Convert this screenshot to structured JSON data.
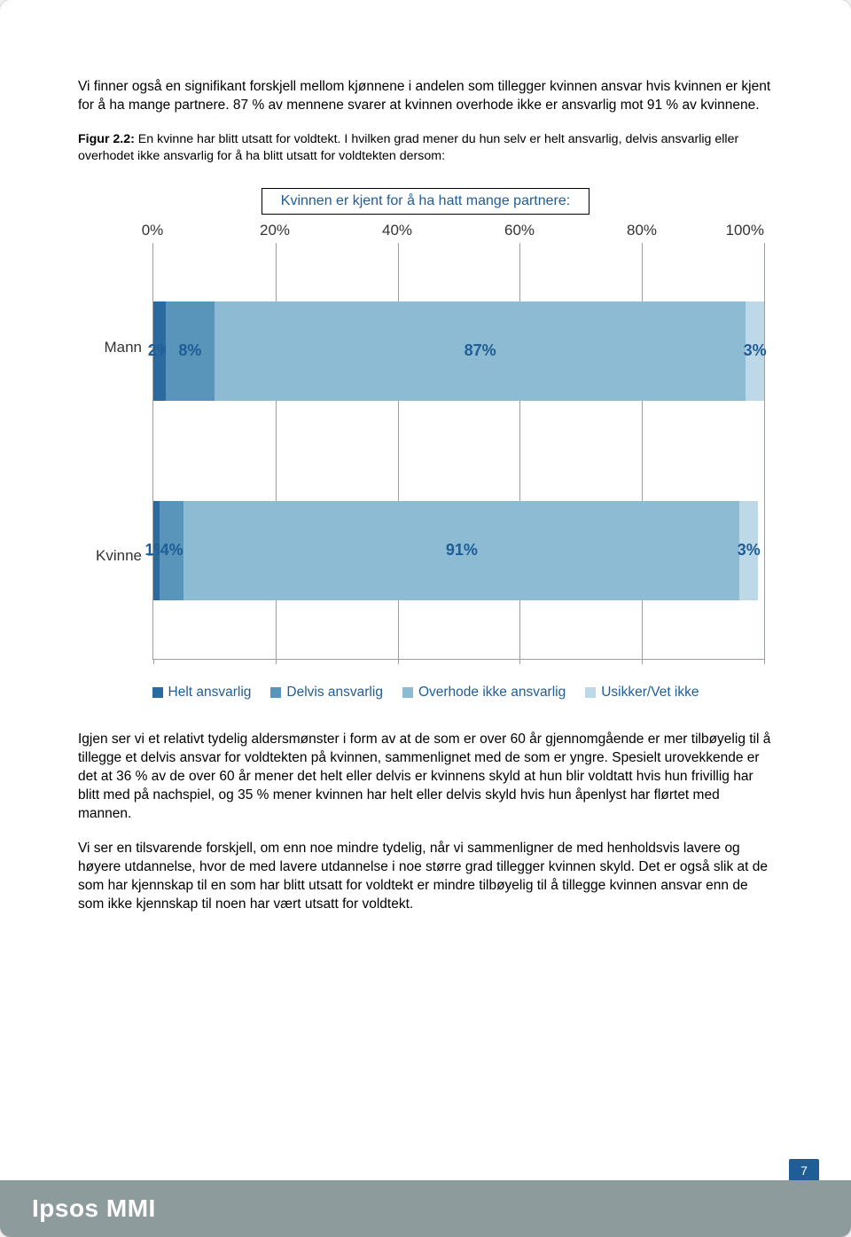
{
  "paragraphs": {
    "intro": "Vi finner også en signifikant forskjell mellom kjønnene i andelen som tillegger kvinnen ansvar hvis kvinnen er kjent for å ha mange partnere. 87 % av mennene svarer at kvinnen overhode ikke er ansvarlig mot 91 % av kvinnene.",
    "caption_bold": "Figur 2.2:",
    "caption_rest": " En kvinne har blitt utsatt for voldtekt. I hvilken grad mener du hun selv er helt ansvarlig, delvis ansvarlig eller overhodet ikke ansvarlig for å ha blitt utsatt for voldtekten dersom:",
    "after1": "Igjen ser vi et relativt tydelig aldersmønster i form av at de som er over 60 år gjennomgående er mer tilbøyelig til å tillegge et delvis ansvar for voldtekten på kvinnen, sammenlignet med de som er yngre. Spesielt urovekkende er det at 36 % av de over 60 år mener det helt eller delvis er kvinnens skyld at hun blir voldtatt hvis hun frivillig har blitt med på nachspiel, og 35 % mener kvinnen har helt eller delvis skyld hvis hun åpenlyst har flørtet med mannen.",
    "after2": "Vi ser en tilsvarende forskjell, om enn noe mindre tydelig, når vi sammenligner de med henholdsvis lavere og høyere utdannelse, hvor de med lavere utdannelse i noe større grad tillegger kvinnen skyld. Det er også slik at de som har kjennskap til en som har blitt utsatt for voldtekt er mindre tilbøyelig til å tillegge kvinnen ansvar enn de som ikke kjennskap til noen har vært utsatt for voldtekt."
  },
  "chart": {
    "title": "Kvinnen er kjent for å ha hatt mange partnere:",
    "x_ticks": [
      "0%",
      "20%",
      "40%",
      "60%",
      "80%",
      "100%"
    ],
    "categories": [
      "Mann",
      "Kvinne"
    ],
    "series": [
      {
        "name": "Helt ansvarlig",
        "color": "#2b6a9e"
      },
      {
        "name": "Delvis ansvarlig",
        "color": "#5994bb"
      },
      {
        "name": "Overhode ikke ansvarlig",
        "color": "#8dbbd4"
      },
      {
        "name": "Usikker/Vet ikke",
        "color": "#bdd9e8"
      }
    ],
    "rows": [
      {
        "label": "Mann",
        "segments": [
          {
            "value": 2,
            "label": "2%",
            "color": "#2b6a9e"
          },
          {
            "value": 8,
            "label": "8%",
            "color": "#5994bb"
          },
          {
            "value": 87,
            "label": "87%",
            "color": "#8dbbd4"
          },
          {
            "value": 3,
            "label": "3%",
            "color": "#bdd9e8"
          }
        ]
      },
      {
        "label": "Kvinne",
        "segments": [
          {
            "value": 1,
            "label": "1%",
            "color": "#2b6a9e"
          },
          {
            "value": 4,
            "label": "4%",
            "color": "#5994bb"
          },
          {
            "value": 91,
            "label": "91%",
            "color": "#8dbbd4"
          },
          {
            "value": 3,
            "label": "3%",
            "color": "#bdd9e8"
          }
        ]
      }
    ],
    "label_text_color": "#1f5d96",
    "grid_color": "#9aa0a0",
    "background": "#ffffff"
  },
  "footer": {
    "brand": "Ipsos MMI",
    "page_number": "7"
  }
}
